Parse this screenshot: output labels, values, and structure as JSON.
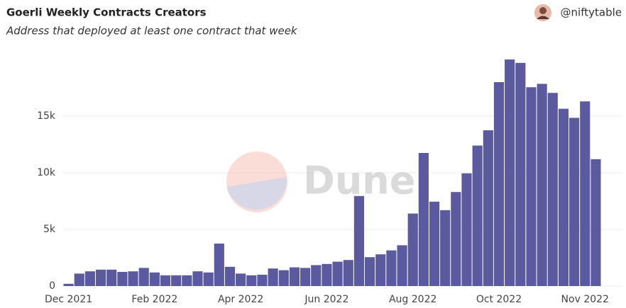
{
  "chart_data": {
    "type": "bar",
    "title": "Goerli Weekly Contracts Creators",
    "subtitle": "Address that deployed at least one contract that week",
    "author": "@niftytable",
    "watermark": "Dune",
    "categories": [
      "Dec 2021",
      null,
      null,
      null,
      null,
      null,
      null,
      null,
      "Feb 2022",
      null,
      null,
      null,
      null,
      null,
      null,
      null,
      "Apr 2022",
      null,
      null,
      null,
      null,
      null,
      null,
      null,
      "Jun 2022",
      null,
      null,
      null,
      null,
      null,
      null,
      null,
      "Aug 2022",
      null,
      null,
      null,
      null,
      null,
      null,
      null,
      "Oct 2022",
      null,
      null,
      null,
      null,
      null,
      null,
      null,
      "Nov 2022",
      null
    ],
    "values": [
      200,
      1100,
      1300,
      1450,
      1450,
      1250,
      1300,
      1600,
      1200,
      950,
      950,
      950,
      1300,
      1200,
      3750,
      1700,
      1100,
      950,
      1000,
      1550,
      1400,
      1650,
      1600,
      1850,
      1950,
      2150,
      2300,
      7950,
      2550,
      2800,
      3150,
      3600,
      6400,
      11750,
      7450,
      6700,
      8300,
      9950,
      12400,
      13750,
      18000,
      20000,
      19700,
      17550,
      17850,
      17050,
      15650,
      14850,
      16300,
      11200
    ],
    "color": "#5b5a9e",
    "ylim": [
      0,
      21000
    ],
    "yticks": [
      0,
      {
        "value": 5000,
        "label": "5k"
      },
      {
        "value": 10000,
        "label": "10k"
      },
      {
        "value": 15000,
        "label": "15k"
      }
    ],
    "grid": true
  }
}
